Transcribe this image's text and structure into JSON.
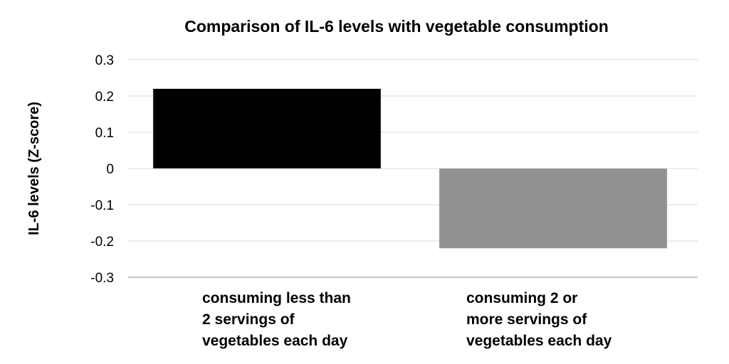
{
  "chart_data": {
    "type": "bar",
    "title": "Comparison of IL-6 levels with vegetable consumption",
    "xlabel": "",
    "ylabel": "IL-6 levels (Z-score)",
    "categories": [
      [
        "consuming less than",
        "2 servings of",
        "vegetables each day"
      ],
      [
        "consuming 2 or",
        "more servings of",
        "vegetables each day"
      ]
    ],
    "values": [
      0.22,
      -0.22
    ],
    "colors": [
      "#000000",
      "#919191"
    ],
    "ylim": [
      -0.3,
      0.3
    ],
    "yticks": [
      "0.3",
      "0.2",
      "0.1",
      "0",
      "-0.1",
      "-0.2",
      "-0.3"
    ],
    "grid": true,
    "legend": "none"
  }
}
